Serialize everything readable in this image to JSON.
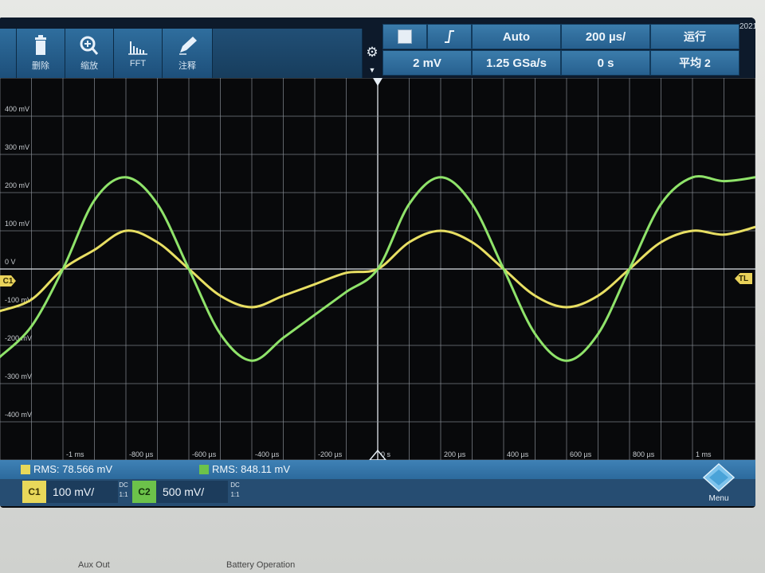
{
  "toolbar": {
    "buttons": [
      {
        "label": "删除",
        "icon": "trash-icon"
      },
      {
        "label": "缩放",
        "icon": "zoom-icon"
      },
      {
        "label": "FFT",
        "icon": "fft-icon"
      },
      {
        "label": "注释",
        "icon": "annotate-pen-icon"
      }
    ],
    "status": {
      "trigger_icon": "trigger-edge-icon",
      "trigger_mode": "Auto",
      "timebase": "200 µs/",
      "run_state": "运行",
      "vertical_scale": "2 mV",
      "sample_rate": "1.25 GSa/s",
      "time_offset": "0 s",
      "acquire_mode": "平均 2"
    },
    "date_fragment": "2021"
  },
  "plot": {
    "y_labels": [
      "400 mV",
      "300 mV",
      "200 mV",
      "100 mV",
      "0 V",
      "-100 mV",
      "-200 mV",
      "-300 mV",
      "-400 mV"
    ],
    "x_labels": [
      "-1 ms",
      "-800 µs",
      "-600 µs",
      "-400 µs",
      "-200 µs",
      "0 s",
      "200 µs",
      "400 µs",
      "600 µs",
      "800 µs",
      "1 ms"
    ],
    "left_marker": "C1",
    "right_marker": "TL"
  },
  "chart_data": {
    "type": "line",
    "x_unit": "µs",
    "y_unit": "mV",
    "xlim": [
      -1200,
      1200
    ],
    "ylim": [
      -500,
      500
    ],
    "series": [
      {
        "name": "C1",
        "color": "#e8df63",
        "x": [
          -1200,
          -1100,
          -1000,
          -900,
          -800,
          -700,
          -600,
          -500,
          -400,
          -300,
          -200,
          -100,
          0,
          100,
          200,
          300,
          400,
          500,
          600,
          700,
          800,
          900,
          1000,
          1100,
          1200
        ],
        "y": [
          -110,
          -80,
          0,
          50,
          100,
          70,
          0,
          -70,
          -100,
          -70,
          -40,
          -10,
          0,
          70,
          100,
          70,
          0,
          -70,
          -100,
          -70,
          0,
          70,
          100,
          90,
          110
        ]
      },
      {
        "name": "C2",
        "color": "#8fe36a",
        "x": [
          -1200,
          -1100,
          -1000,
          -900,
          -800,
          -700,
          -600,
          -500,
          -400,
          -300,
          -200,
          -100,
          0,
          100,
          200,
          300,
          400,
          500,
          600,
          700,
          800,
          900,
          1000,
          1100,
          1200
        ],
        "y": [
          -230,
          -150,
          0,
          180,
          240,
          170,
          0,
          -170,
          -240,
          -180,
          -120,
          -60,
          0,
          170,
          240,
          170,
          0,
          -170,
          -240,
          -170,
          0,
          170,
          240,
          230,
          240
        ]
      }
    ]
  },
  "measurements": {
    "c1_rms": "RMS: 78.566 mV",
    "c2_rms": "RMS: 848.11 mV"
  },
  "channels": {
    "c1": {
      "tag": "C1",
      "scale": "100 mV/",
      "coupling": "DC",
      "ratio": "1:1"
    },
    "c2": {
      "tag": "C2",
      "scale": "500 mV/",
      "coupling": "DC",
      "ratio": "1:1"
    }
  },
  "menu_label": "Menu",
  "panel_labels": [
    "Aux Out",
    "Battery Operation"
  ],
  "colors": {
    "c1": "#e8d85a",
    "c2": "#6cc24a",
    "toolbar": "#2f6e9e"
  }
}
